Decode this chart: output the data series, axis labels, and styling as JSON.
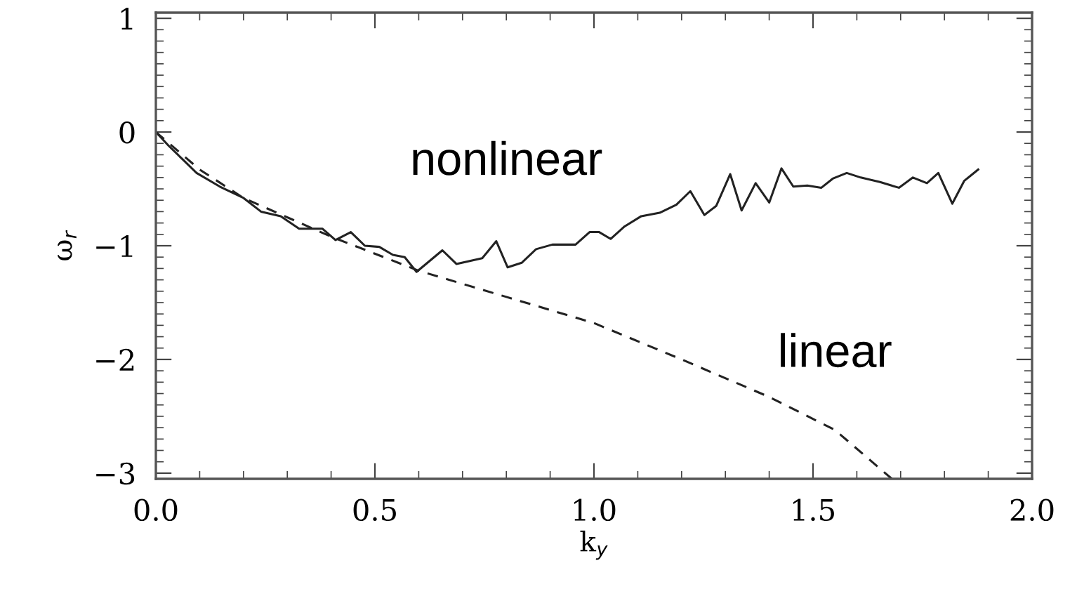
{
  "chart_data": {
    "type": "line",
    "xlabel": "k$_{y}$",
    "ylabel": "ω$_{r}$",
    "xlim": [
      0,
      2.0
    ],
    "ylim": [
      -3.05,
      1.05
    ],
    "xticks": [
      {
        "value": 0,
        "label": "0.0"
      },
      {
        "value": 0.5,
        "label": "0.5"
      },
      {
        "value": 1.0,
        "label": "1.0"
      },
      {
        "value": 1.5,
        "label": "1.5"
      },
      {
        "value": 2.0,
        "label": "2.0"
      }
    ],
    "yticks": [
      {
        "value": -3,
        "label": "−3"
      },
      {
        "value": -2,
        "label": "−2"
      },
      {
        "value": -1,
        "label": "−1"
      },
      0,
      1
    ],
    "grid": false,
    "legend": false,
    "series": [
      {
        "name": "nonlinear",
        "color": "#222222",
        "line_style": "solid",
        "x": [
          0,
          0.029,
          0.061,
          0.093,
          0.146,
          0.2,
          0.24,
          0.285,
          0.327,
          0.38,
          0.41,
          0.445,
          0.477,
          0.51,
          0.541,
          0.568,
          0.595,
          0.654,
          0.686,
          0.745,
          0.777,
          0.803,
          0.835,
          0.868,
          0.905,
          0.958,
          0.99,
          1.012,
          1.038,
          1.07,
          1.108,
          1.15,
          1.188,
          1.22,
          1.252,
          1.279,
          1.311,
          1.337,
          1.369,
          1.4,
          1.428,
          1.455,
          1.487,
          1.519,
          1.545,
          1.577,
          1.609,
          1.653,
          1.696,
          1.728,
          1.76,
          1.786,
          1.818,
          1.845,
          1.877
        ],
        "values": [
          0,
          -0.12,
          -0.24,
          -0.36,
          -0.48,
          -0.58,
          -0.7,
          -0.74,
          -0.85,
          -0.85,
          -0.95,
          -0.88,
          -1.0,
          -1.01,
          -1.08,
          -1.1,
          -1.23,
          -1.04,
          -1.16,
          -1.11,
          -0.96,
          -1.19,
          -1.15,
          -1.03,
          -0.99,
          -0.99,
          -0.88,
          -0.88,
          -0.94,
          -0.83,
          -0.74,
          -0.71,
          -0.64,
          -0.52,
          -0.73,
          -0.65,
          -0.37,
          -0.69,
          -0.45,
          -0.62,
          -0.32,
          -0.48,
          -0.47,
          -0.49,
          -0.41,
          -0.36,
          -0.4,
          -0.44,
          -0.49,
          -0.4,
          -0.45,
          -0.36,
          -0.63,
          -0.43,
          -0.33
        ]
      },
      {
        "name": "linear",
        "color": "#222222",
        "line_style": "dashed",
        "x": [
          0,
          0.1,
          0.2,
          0.4,
          0.6,
          0.8,
          1.0,
          1.2,
          1.4,
          1.55,
          1.68
        ],
        "values": [
          0,
          -0.33,
          -0.58,
          -0.92,
          -1.22,
          -1.45,
          -1.68,
          -2.0,
          -2.33,
          -2.62,
          -3.05
        ]
      }
    ]
  }
}
